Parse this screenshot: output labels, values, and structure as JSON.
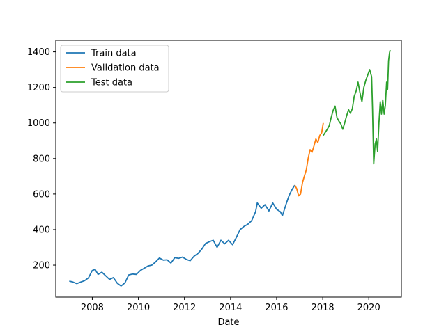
{
  "chart_data": {
    "type": "line",
    "xlabel": "Date",
    "ylabel": "",
    "x_axis_type": "date",
    "xlim": [
      "2006-06-01",
      "2021-06-01"
    ],
    "ylim": [
      20,
      1465
    ],
    "xticks": [
      "2008",
      "2010",
      "2012",
      "2014",
      "2016",
      "2018",
      "2020"
    ],
    "yticks": [
      200,
      400,
      600,
      800,
      1000,
      1200,
      1400
    ],
    "grid": false,
    "legend_position": "top-left",
    "series": [
      {
        "name": "Train data",
        "color": "#1f77b4",
        "points": [
          {
            "x": "2007-01-01",
            "y": 110
          },
          {
            "x": "2007-03-01",
            "y": 105
          },
          {
            "x": "2007-05-01",
            "y": 96
          },
          {
            "x": "2007-07-01",
            "y": 105
          },
          {
            "x": "2007-09-01",
            "y": 113
          },
          {
            "x": "2007-11-01",
            "y": 128
          },
          {
            "x": "2008-01-01",
            "y": 170
          },
          {
            "x": "2008-02-15",
            "y": 176
          },
          {
            "x": "2008-04-01",
            "y": 148
          },
          {
            "x": "2008-06-01",
            "y": 160
          },
          {
            "x": "2008-08-01",
            "y": 140
          },
          {
            "x": "2008-10-01",
            "y": 120
          },
          {
            "x": "2008-12-01",
            "y": 130
          },
          {
            "x": "2009-02-01",
            "y": 98
          },
          {
            "x": "2009-04-01",
            "y": 83
          },
          {
            "x": "2009-06-01",
            "y": 100
          },
          {
            "x": "2009-08-01",
            "y": 145
          },
          {
            "x": "2009-10-01",
            "y": 150
          },
          {
            "x": "2009-12-01",
            "y": 148
          },
          {
            "x": "2010-02-01",
            "y": 170
          },
          {
            "x": "2010-04-01",
            "y": 182
          },
          {
            "x": "2010-06-01",
            "y": 195
          },
          {
            "x": "2010-08-01",
            "y": 200
          },
          {
            "x": "2010-10-01",
            "y": 218
          },
          {
            "x": "2010-12-01",
            "y": 240
          },
          {
            "x": "2011-02-01",
            "y": 228
          },
          {
            "x": "2011-04-01",
            "y": 230
          },
          {
            "x": "2011-06-01",
            "y": 212
          },
          {
            "x": "2011-08-01",
            "y": 242
          },
          {
            "x": "2011-10-01",
            "y": 238
          },
          {
            "x": "2011-12-01",
            "y": 245
          },
          {
            "x": "2012-02-01",
            "y": 232
          },
          {
            "x": "2012-04-01",
            "y": 225
          },
          {
            "x": "2012-06-01",
            "y": 250
          },
          {
            "x": "2012-08-01",
            "y": 265
          },
          {
            "x": "2012-10-01",
            "y": 290
          },
          {
            "x": "2012-12-01",
            "y": 322
          },
          {
            "x": "2013-02-01",
            "y": 332
          },
          {
            "x": "2013-04-01",
            "y": 340
          },
          {
            "x": "2013-06-01",
            "y": 300
          },
          {
            "x": "2013-08-01",
            "y": 340
          },
          {
            "x": "2013-10-01",
            "y": 320
          },
          {
            "x": "2013-12-01",
            "y": 340
          },
          {
            "x": "2014-02-01",
            "y": 315
          },
          {
            "x": "2014-04-01",
            "y": 355
          },
          {
            "x": "2014-06-01",
            "y": 400
          },
          {
            "x": "2014-08-01",
            "y": 418
          },
          {
            "x": "2014-10-01",
            "y": 430
          },
          {
            "x": "2014-12-01",
            "y": 450
          },
          {
            "x": "2015-02-01",
            "y": 500
          },
          {
            "x": "2015-03-01",
            "y": 550
          },
          {
            "x": "2015-05-01",
            "y": 520
          },
          {
            "x": "2015-07-01",
            "y": 540
          },
          {
            "x": "2015-09-01",
            "y": 505
          },
          {
            "x": "2015-11-01",
            "y": 550
          },
          {
            "x": "2016-01-01",
            "y": 515
          },
          {
            "x": "2016-03-01",
            "y": 500
          },
          {
            "x": "2016-04-01",
            "y": 478
          },
          {
            "x": "2016-06-01",
            "y": 545
          },
          {
            "x": "2016-07-15",
            "y": 590
          },
          {
            "x": "2016-09-01",
            "y": 625
          },
          {
            "x": "2016-10-15",
            "y": 650
          }
        ]
      },
      {
        "name": "Validation data",
        "color": "#ff7f0e",
        "points": [
          {
            "x": "2016-10-15",
            "y": 650
          },
          {
            "x": "2016-11-15",
            "y": 630
          },
          {
            "x": "2016-12-15",
            "y": 590
          },
          {
            "x": "2017-01-15",
            "y": 600
          },
          {
            "x": "2017-02-15",
            "y": 665
          },
          {
            "x": "2017-03-15",
            "y": 700
          },
          {
            "x": "2017-04-15",
            "y": 735
          },
          {
            "x": "2017-05-15",
            "y": 800
          },
          {
            "x": "2017-06-15",
            "y": 850
          },
          {
            "x": "2017-07-15",
            "y": 835
          },
          {
            "x": "2017-08-15",
            "y": 870
          },
          {
            "x": "2017-09-15",
            "y": 910
          },
          {
            "x": "2017-10-15",
            "y": 890
          },
          {
            "x": "2017-11-15",
            "y": 930
          },
          {
            "x": "2017-12-15",
            "y": 945
          },
          {
            "x": "2018-01-10",
            "y": 1000
          }
        ]
      },
      {
        "name": "Test data",
        "color": "#2ca02c",
        "points": [
          {
            "x": "2018-01-10",
            "y": 930
          },
          {
            "x": "2018-02-15",
            "y": 950
          },
          {
            "x": "2018-03-15",
            "y": 965
          },
          {
            "x": "2018-04-15",
            "y": 985
          },
          {
            "x": "2018-05-15",
            "y": 1030
          },
          {
            "x": "2018-06-15",
            "y": 1070
          },
          {
            "x": "2018-07-15",
            "y": 1095
          },
          {
            "x": "2018-08-15",
            "y": 1030
          },
          {
            "x": "2018-09-15",
            "y": 1010
          },
          {
            "x": "2018-10-15",
            "y": 995
          },
          {
            "x": "2018-11-15",
            "y": 965
          },
          {
            "x": "2018-12-15",
            "y": 1000
          },
          {
            "x": "2019-01-15",
            "y": 1040
          },
          {
            "x": "2019-02-15",
            "y": 1075
          },
          {
            "x": "2019-03-15",
            "y": 1055
          },
          {
            "x": "2019-04-15",
            "y": 1080
          },
          {
            "x": "2019-05-15",
            "y": 1150
          },
          {
            "x": "2019-06-15",
            "y": 1180
          },
          {
            "x": "2019-07-15",
            "y": 1230
          },
          {
            "x": "2019-08-15",
            "y": 1170
          },
          {
            "x": "2019-09-15",
            "y": 1120
          },
          {
            "x": "2019-10-15",
            "y": 1200
          },
          {
            "x": "2019-11-15",
            "y": 1240
          },
          {
            "x": "2019-12-15",
            "y": 1270
          },
          {
            "x": "2020-01-15",
            "y": 1300
          },
          {
            "x": "2020-02-15",
            "y": 1260
          },
          {
            "x": "2020-03-01",
            "y": 1080
          },
          {
            "x": "2020-03-20",
            "y": 770
          },
          {
            "x": "2020-04-10",
            "y": 880
          },
          {
            "x": "2020-05-01",
            "y": 910
          },
          {
            "x": "2020-05-20",
            "y": 840
          },
          {
            "x": "2020-06-10",
            "y": 1000
          },
          {
            "x": "2020-07-01",
            "y": 1120
          },
          {
            "x": "2020-07-20",
            "y": 1050
          },
          {
            "x": "2020-08-10",
            "y": 1130
          },
          {
            "x": "2020-09-01",
            "y": 1050
          },
          {
            "x": "2020-09-20",
            "y": 1100
          },
          {
            "x": "2020-10-10",
            "y": 1230
          },
          {
            "x": "2020-10-25",
            "y": 1190
          },
          {
            "x": "2020-11-10",
            "y": 1350
          },
          {
            "x": "2020-11-25",
            "y": 1395
          },
          {
            "x": "2020-12-05",
            "y": 1410
          }
        ]
      }
    ]
  }
}
